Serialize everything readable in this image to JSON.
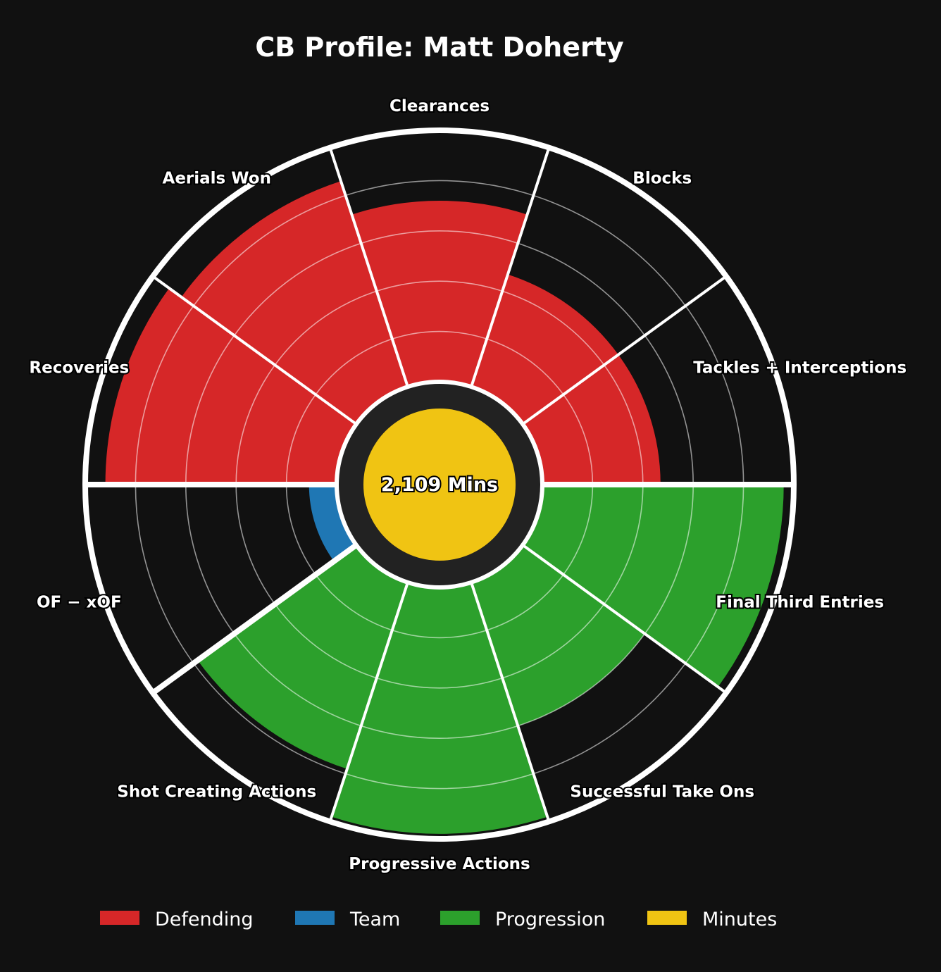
{
  "chart_data": {
    "type": "polar-bar",
    "title": "CB Profile: Matt Doherty",
    "center_label": "2,109 Mins",
    "categories": [
      {
        "label": "Tackles + Interceptions",
        "value": 47,
        "group": "Defending"
      },
      {
        "label": "Blocks",
        "value": 47,
        "group": "Defending"
      },
      {
        "label": "Clearances",
        "value": 72,
        "group": "Defending"
      },
      {
        "label": "Aerials Won",
        "value": 86,
        "group": "Defending"
      },
      {
        "label": "Recoveries",
        "value": 92,
        "group": "Defending"
      },
      {
        "label": "OF − xOF",
        "value": 11,
        "group": "Team"
      },
      {
        "label": "Shot Creating Actions",
        "value": 78,
        "group": "Progression"
      },
      {
        "label": "Progressive Actions",
        "value": 98,
        "group": "Progression"
      },
      {
        "label": "Successful Take Ons",
        "value": 60,
        "group": "Progression"
      },
      {
        "label": "Final Third Entries",
        "value": 96,
        "group": "Progression"
      }
    ],
    "ylim": [
      0,
      100
    ],
    "gridlines": [
      20,
      40,
      60,
      80
    ],
    "legend": {
      "placement": "bottom",
      "items": [
        {
          "label": "Defending",
          "color": "#d62728"
        },
        {
          "label": "Team",
          "color": "#1f77b4"
        },
        {
          "label": "Progression",
          "color": "#2ca02c"
        },
        {
          "label": "Minutes",
          "color": "#f0c413"
        }
      ]
    }
  },
  "colors": {
    "background": "#111111",
    "ring": "#ffffff",
    "inner_disc": "#222222",
    "minutes": "#f0c413"
  }
}
